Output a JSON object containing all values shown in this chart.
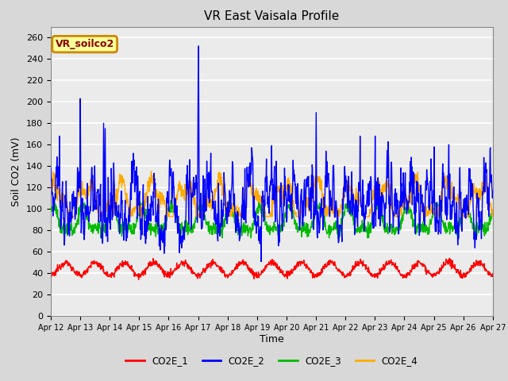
{
  "title": "VR East Vaisala Profile",
  "xlabel": "Time",
  "ylabel": "Soil CO2 (mV)",
  "annotation": "VR_soilco2",
  "ylim": [
    0,
    270
  ],
  "yticks": [
    0,
    20,
    40,
    60,
    80,
    100,
    120,
    140,
    160,
    180,
    200,
    220,
    240,
    260
  ],
  "xtick_labels": [
    "Apr 12",
    "Apr 13",
    "Apr 14",
    "Apr 15",
    "Apr 16",
    "Apr 17",
    "Apr 18",
    "Apr 19",
    "Apr 20",
    "Apr 21",
    "Apr 22",
    "Apr 23",
    "Apr 24",
    "Apr 25",
    "Apr 26",
    "Apr 27"
  ],
  "colors": {
    "CO2E_1": "#ff0000",
    "CO2E_2": "#0000ff",
    "CO2E_3": "#00bb00",
    "CO2E_4": "#ffaa00"
  },
  "line_width": 1.0,
  "background_color": "#d8d8d8",
  "plot_bg_color": "#ebebeb",
  "grid_color": "#ffffff",
  "annotation_box_color": "#ffff99",
  "annotation_border_color": "#cc8800",
  "annotation_text_color": "#880000"
}
